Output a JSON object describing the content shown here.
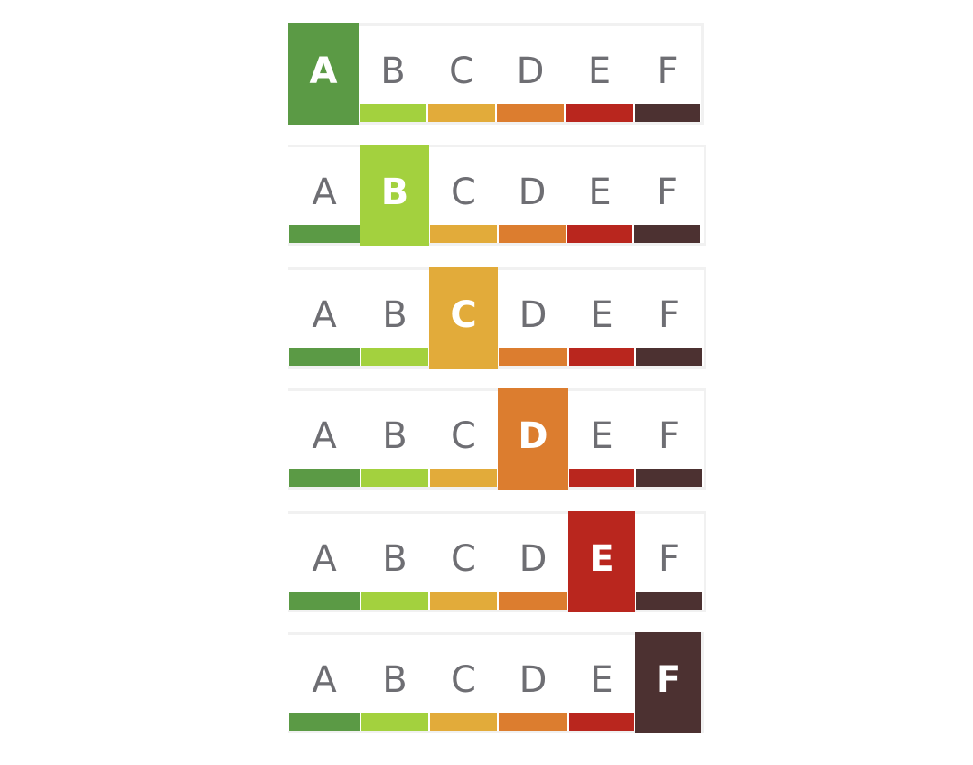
{
  "grade_letters": [
    "A",
    "B",
    "C",
    "D",
    "E",
    "F"
  ],
  "grade_colors": [
    "#5b9a45",
    "#a3d13e",
    "#e2ab3a",
    "#dc7d2f",
    "#b9261e",
    "#4c3131"
  ],
  "scales": [
    {
      "active_grade": "A"
    },
    {
      "active_grade": "B"
    },
    {
      "active_grade": "C"
    },
    {
      "active_grade": "D"
    },
    {
      "active_grade": "E"
    },
    {
      "active_grade": "F"
    }
  ]
}
